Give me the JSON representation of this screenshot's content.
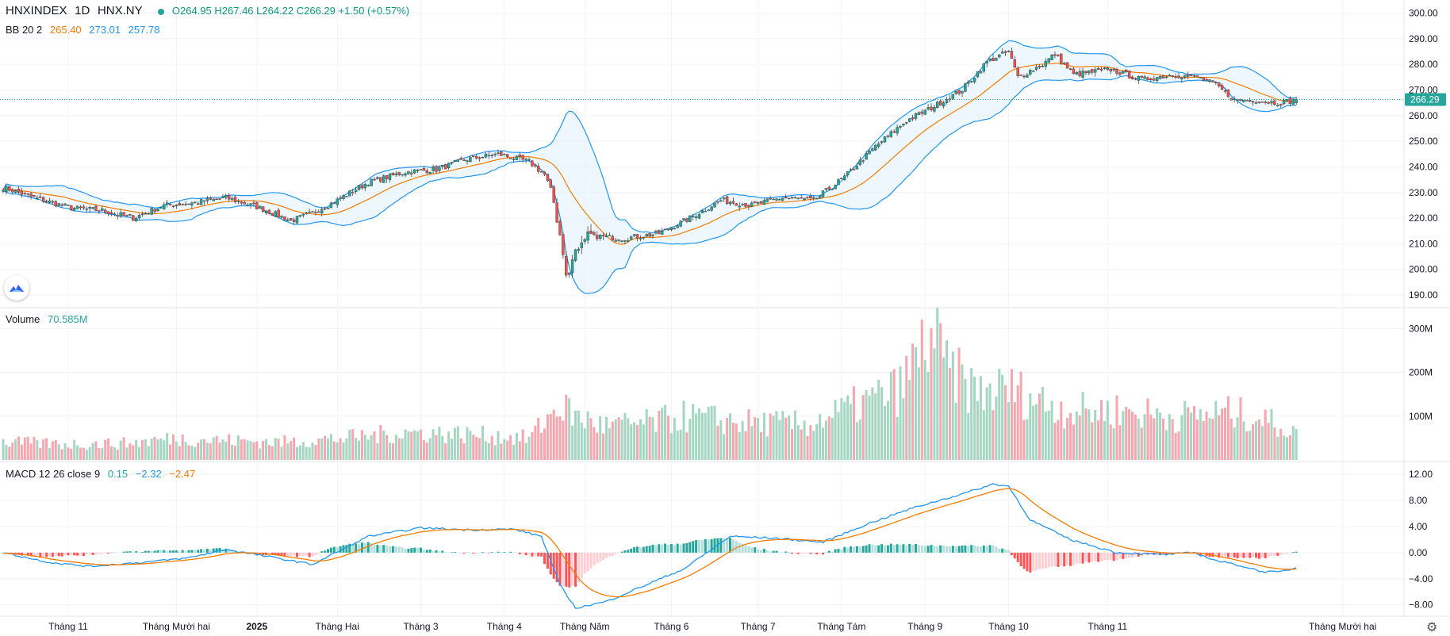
{
  "header": {
    "symbol": "HNXINDEX",
    "interval": "1D",
    "exchange": "HNX.NY",
    "ohlc": "O264.95  H267.46  L264.22  C266.29  +1.50 (+0.57%)",
    "bb_label": "BB 20 2",
    "bb_basis": "265.40",
    "bb_upper": "273.01",
    "bb_lower": "257.78",
    "volume_label": "Volume",
    "volume_value": "70.585M",
    "macd_label": "MACD 12 26 close 9",
    "macd_hist": "0.15",
    "macd_line": "−2.32",
    "macd_signal": "−2.47"
  },
  "price_badge": "266.29",
  "colors": {
    "up": "#26a69a",
    "down": "#ef5350",
    "basis": "#f57c00",
    "band": "#2196f3",
    "band_fill": "#e3f2fd"
  },
  "icons": {
    "logo": "tradingview-cloud-icon",
    "settings": "gear-icon"
  },
  "chart_data": [
    {
      "type": "candlestick",
      "series_name": "HNXINDEX",
      "y_ticks": [
        "300.00",
        "290.00",
        "280.00",
        "270.00",
        "260.00",
        "250.00",
        "240.00",
        "230.00",
        "220.00",
        "210.00",
        "200.00",
        "190.00"
      ],
      "ylim": [
        186,
        302
      ],
      "x_ticks": [
        "Tháng 11",
        "Tháng Mười hai",
        "2025",
        "Tháng Hai",
        "Tháng 3",
        "Tháng 4",
        "Tháng Năm",
        "Tháng 6",
        "Tháng 7",
        "Tháng Tám",
        "Tháng 9",
        "Tháng 10",
        "Tháng 11",
        "Tháng Mười hai"
      ],
      "close_anchors": [
        [
          0,
          232
        ],
        [
          10,
          228
        ],
        [
          22,
          224
        ],
        [
          32,
          223
        ],
        [
          42,
          220
        ],
        [
          52,
          225
        ],
        [
          62,
          226
        ],
        [
          72,
          228
        ],
        [
          83,
          224
        ],
        [
          93,
          219
        ],
        [
          100,
          222
        ],
        [
          108,
          227
        ],
        [
          118,
          234
        ],
        [
          130,
          238
        ],
        [
          140,
          239
        ],
        [
          150,
          243
        ],
        [
          160,
          245
        ],
        [
          170,
          242
        ],
        [
          175,
          237
        ],
        [
          178,
          228
        ],
        [
          182,
          198
        ],
        [
          186,
          210
        ],
        [
          192,
          213
        ],
        [
          200,
          212
        ],
        [
          212,
          214
        ],
        [
          222,
          220
        ],
        [
          232,
          227
        ],
        [
          242,
          225
        ],
        [
          252,
          228
        ],
        [
          262,
          227
        ],
        [
          272,
          236
        ],
        [
          282,
          248
        ],
        [
          292,
          258
        ],
        [
          300,
          263
        ],
        [
          310,
          270
        ],
        [
          318,
          281
        ],
        [
          325,
          285
        ],
        [
          328,
          275
        ],
        [
          336,
          280
        ],
        [
          340,
          284
        ],
        [
          346,
          276
        ],
        [
          358,
          278
        ],
        [
          368,
          274
        ],
        [
          378,
          276
        ],
        [
          386,
          275
        ],
        [
          392,
          272
        ],
        [
          398,
          266
        ],
        [
          405,
          266
        ],
        [
          412,
          265
        ],
        [
          418,
          266
        ]
      ],
      "bb": {
        "basis": "265.40",
        "upper": "273.01",
        "lower": "257.78"
      }
    },
    {
      "type": "bar",
      "series_name": "Volume",
      "y_ticks": [
        "300M",
        "200M",
        "100M"
      ],
      "ylim": [
        0,
        335
      ],
      "last_value_millions": 70.585,
      "anchors_millions": [
        [
          0,
          45
        ],
        [
          20,
          40
        ],
        [
          40,
          42
        ],
        [
          55,
          55
        ],
        [
          70,
          50
        ],
        [
          90,
          45
        ],
        [
          110,
          55
        ],
        [
          130,
          70
        ],
        [
          150,
          65
        ],
        [
          170,
          55
        ],
        [
          180,
          140
        ],
        [
          185,
          110
        ],
        [
          195,
          85
        ],
        [
          210,
          95
        ],
        [
          220,
          110
        ],
        [
          240,
          95
        ],
        [
          260,
          90
        ],
        [
          280,
          150
        ],
        [
          290,
          180
        ],
        [
          300,
          320
        ],
        [
          305,
          230
        ],
        [
          315,
          170
        ],
        [
          325,
          180
        ],
        [
          335,
          150
        ],
        [
          345,
          125
        ],
        [
          360,
          125
        ],
        [
          380,
          110
        ],
        [
          395,
          120
        ],
        [
          405,
          110
        ],
        [
          418,
          70
        ]
      ]
    },
    {
      "type": "line",
      "series_name": "MACD 12 26 close 9",
      "y_ticks": [
        "12.00",
        "8.00",
        "4.00",
        "0.00",
        "−4.00",
        "−8.00"
      ],
      "ylim": [
        -9.5,
        13
      ],
      "macd_anchors": [
        [
          0,
          0
        ],
        [
          15,
          -1.5
        ],
        [
          28,
          -2.1
        ],
        [
          45,
          -1.5
        ],
        [
          60,
          -0.8
        ],
        [
          72,
          0.5
        ],
        [
          88,
          -0.8
        ],
        [
          100,
          -1.8
        ],
        [
          118,
          2.5
        ],
        [
          135,
          3.8
        ],
        [
          150,
          3.5
        ],
        [
          165,
          3.6
        ],
        [
          174,
          2.5
        ],
        [
          180,
          -5
        ],
        [
          185,
          -8.5
        ],
        [
          195,
          -7.5
        ],
        [
          220,
          -2.5
        ],
        [
          235,
          2.5
        ],
        [
          250,
          2.2
        ],
        [
          265,
          1.6
        ],
        [
          280,
          4.5
        ],
        [
          295,
          7
        ],
        [
          310,
          9
        ],
        [
          320,
          10.5
        ],
        [
          325,
          10.2
        ],
        [
          332,
          5
        ],
        [
          345,
          2
        ],
        [
          360,
          0
        ],
        [
          375,
          -0.3
        ],
        [
          385,
          0
        ],
        [
          392,
          -1.2
        ],
        [
          400,
          -2
        ],
        [
          407,
          -2.9
        ],
        [
          412,
          -3
        ],
        [
          418,
          -2.32
        ]
      ]
    }
  ]
}
